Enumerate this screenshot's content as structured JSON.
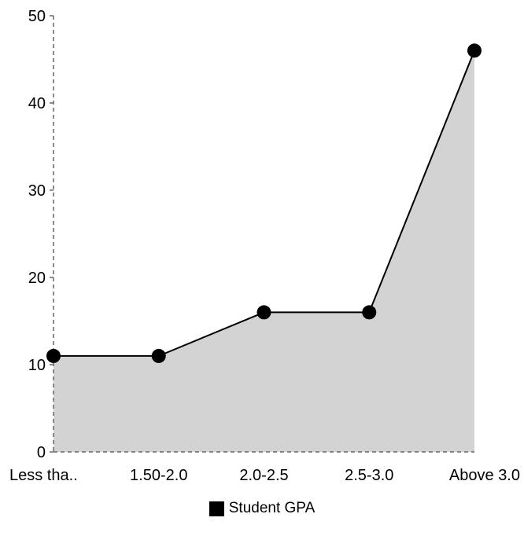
{
  "chart_data": {
    "type": "area",
    "categories": [
      "Less tha..",
      "1.50-2.0",
      "2.0-2.5",
      "2.5-3.0",
      "Above 3.0"
    ],
    "series": [
      {
        "name": "Student GPA",
        "values": [
          11,
          11,
          16,
          16,
          46
        ]
      }
    ],
    "title": "",
    "xlabel": "",
    "ylabel": "",
    "ylim": [
      0,
      50
    ],
    "yticks": [
      0,
      10,
      20,
      30,
      40,
      50
    ],
    "grid": false,
    "legend_position": "bottom-center",
    "colors": {
      "area_fill": "#d3d3d3",
      "line": "#000000",
      "marker": "#000000",
      "axis": "#666666"
    }
  }
}
